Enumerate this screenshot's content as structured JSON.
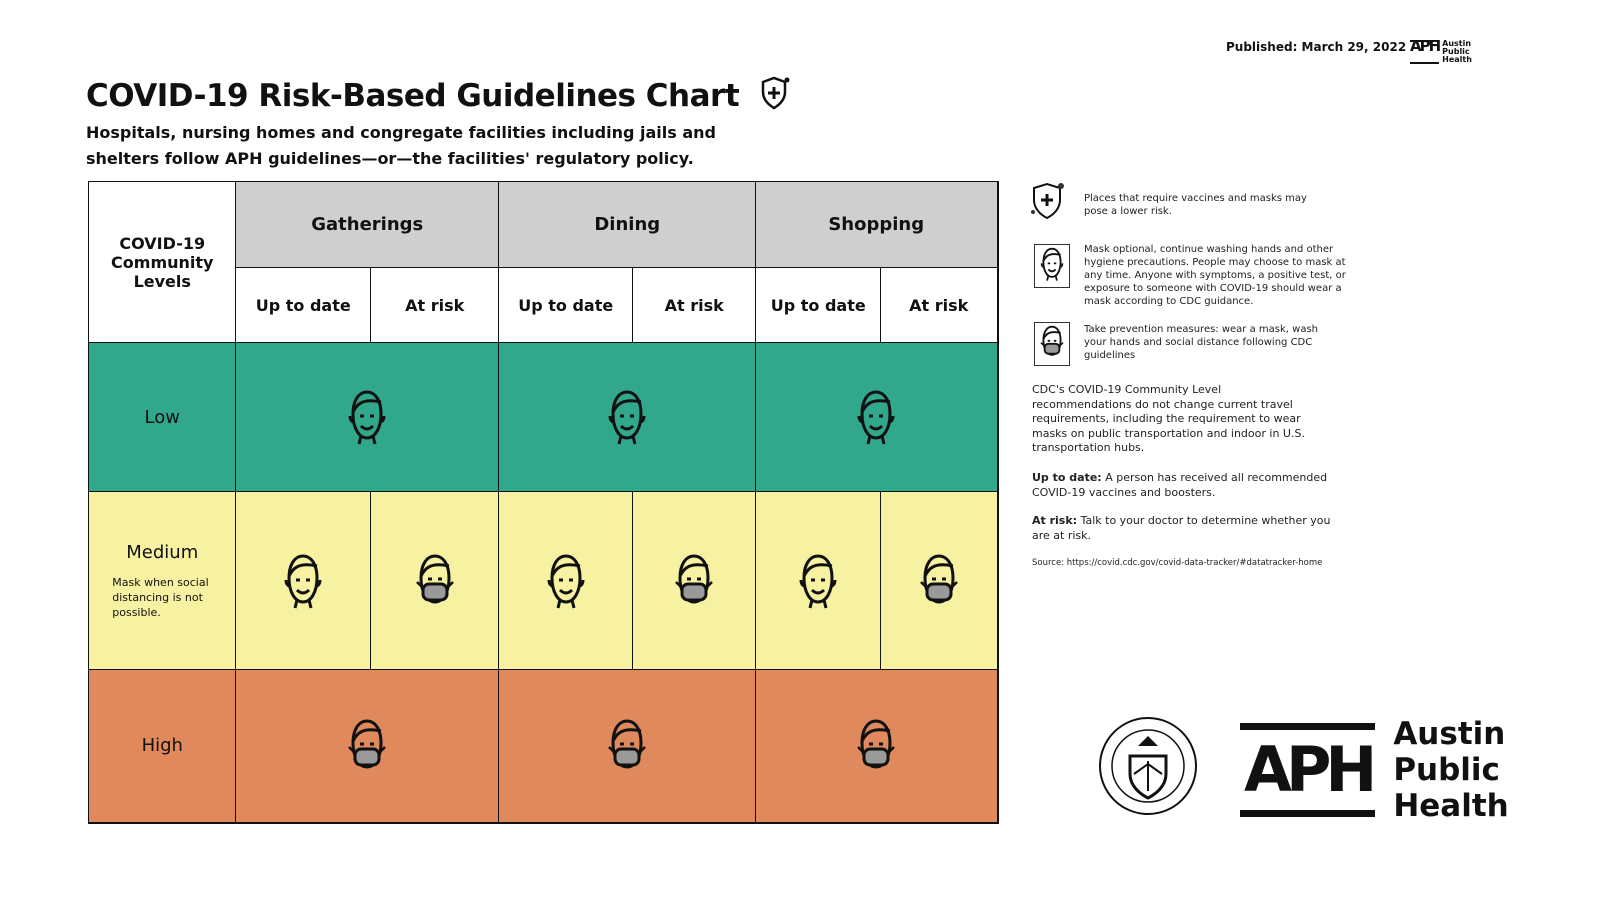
{
  "header": {
    "title": "COVID-19 Risk-Based Guidelines Chart",
    "subtitle": "Hospitals, nursing homes and congregate facilities including jails and shelters follow APH guidelines—or—the facilities' regulatory policy.",
    "published": "Published: March 29, 2022",
    "title_icon": "shield-plus-icon"
  },
  "table": {
    "corner": "COVID-19 Community Levels",
    "groups": [
      "Gatherings",
      "Dining",
      "Shopping"
    ],
    "subcols": [
      "Up to date",
      "At risk"
    ],
    "levels": [
      {
        "label": "Low",
        "note": "",
        "color": "#31a88b",
        "icons": [
          "smile-face",
          "smile-face",
          "smile-face"
        ]
      },
      {
        "label": "Medium",
        "note": "Mask when social distancing is not possible.",
        "color": "#f7f1a2",
        "icons": [
          "smile-face",
          "mask-face",
          "smile-face",
          "mask-face",
          "smile-face",
          "mask-face"
        ]
      },
      {
        "label": "High",
        "note": "",
        "color": "#e0895c",
        "icons": [
          "mask-face",
          "mask-face",
          "mask-face"
        ]
      }
    ],
    "header_color": "#cfcfcf"
  },
  "legend": {
    "shield": "Places that require vaccines and masks may pose a lower risk.",
    "smile": "Mask optional, continue washing hands and other hygiene precautions. People may choose to mask at any time. Anyone with symptoms, a positive test, or exposure to someone with COVID-19 should wear a mask according to CDC guidance.",
    "mask": "Take prevention measures: wear a mask, wash your hands and social distance following CDC guidelines",
    "cdc": "CDC's COVID-19 Community Level recommendations do not change current travel requirements, including the requirement to wear masks on public transportation and indoor in U.S. transportation hubs.",
    "uptodate_term": "Up to date:",
    "uptodate_def": "A person has received all recommended COVID-19 vaccines and boosters.",
    "atrisk_term": "At risk:",
    "atrisk_def": "Talk to your doctor to determine whether you are at risk.",
    "source": "Source: https://covid.cdc.gov/covid-data-tracker/#datatracker-home"
  },
  "logos": {
    "aph_mark": "APH",
    "aph_name": [
      "Austin",
      "Public",
      "Health"
    ],
    "seal": "CITY OF AUSTIN FOUNDED 1839"
  }
}
